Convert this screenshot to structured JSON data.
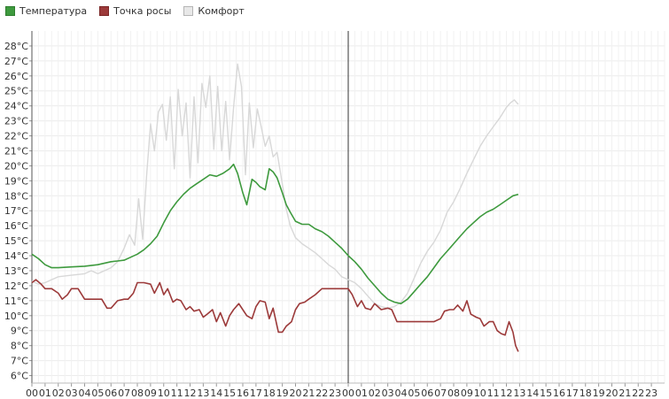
{
  "legend": [
    {
      "name": "Температура",
      "color": "#3e9a3e",
      "border": "#2e7d2e"
    },
    {
      "name": "Точка росы",
      "color": "#9c3a3a",
      "border": "#7a2525"
    },
    {
      "name": "Комфорт",
      "color": "#e8e8e8",
      "border": "#b5b5b5"
    }
  ],
  "chart_data": {
    "type": "line",
    "y_unit": "°C",
    "ylim": [
      5.5,
      29
    ],
    "y_ticks": [
      "6°C",
      "7°C",
      "8°C",
      "9°C",
      "10°C",
      "11°C",
      "12°C",
      "13°C",
      "14°C",
      "15°C",
      "16°C",
      "17°C",
      "18°C",
      "19°C",
      "20°C",
      "21°C",
      "22°C",
      "23°C",
      "24°C",
      "25°C",
      "26°C",
      "27°C",
      "28°C"
    ],
    "x_ticks": [
      "00",
      "01",
      "02",
      "03",
      "04",
      "05",
      "06",
      "07",
      "08",
      "09",
      "10",
      "11",
      "12",
      "13",
      "14",
      "15",
      "16",
      "17",
      "18",
      "19",
      "20",
      "21",
      "22",
      "23",
      "00",
      "01",
      "02",
      "03",
      "04",
      "05",
      "06",
      "07",
      "08",
      "09",
      "10",
      "11",
      "12",
      "13",
      "14",
      "15",
      "16",
      "17",
      "18",
      "19",
      "20",
      "21",
      "22",
      "23"
    ],
    "xlim_hours": [
      0,
      48
    ],
    "day_divider_hour": 24,
    "grid": true,
    "legend_position": "top-left",
    "series": [
      {
        "name": "Температура",
        "color": "#3e9a3e",
        "x": [
          0,
          0.5,
          1,
          1.5,
          2,
          3,
          4,
          5,
          6,
          6.5,
          7,
          7.5,
          8,
          8.5,
          9,
          9.5,
          10,
          10.5,
          11,
          11.5,
          12,
          12.5,
          13,
          13.5,
          14,
          14.5,
          15,
          15.3,
          15.6,
          16,
          16.3,
          16.7,
          17,
          17.3,
          17.7,
          18,
          18.3,
          18.6,
          19,
          19.3,
          19.6,
          20,
          20.5,
          21,
          21.5,
          22,
          22.5,
          23,
          23.5,
          24,
          24.5,
          25,
          25.5,
          26,
          26.5,
          27,
          27.5,
          28,
          28.5,
          29,
          29.5,
          30,
          30.5,
          31,
          31.5,
          32,
          32.5,
          33,
          33.5,
          34,
          34.5,
          35,
          35.5,
          36,
          36.5,
          36.9
        ],
        "y": [
          14.1,
          13.8,
          13.4,
          13.2,
          13.2,
          13.25,
          13.3,
          13.4,
          13.6,
          13.65,
          13.7,
          13.9,
          14.1,
          14.4,
          14.8,
          15.3,
          16.2,
          17,
          17.6,
          18.1,
          18.5,
          18.8,
          19.1,
          19.4,
          19.3,
          19.5,
          19.8,
          20.1,
          19.5,
          18.2,
          17.4,
          19.1,
          18.9,
          18.6,
          18.4,
          19.8,
          19.6,
          19.2,
          18.2,
          17.4,
          16.9,
          16.3,
          16.1,
          16.1,
          15.8,
          15.6,
          15.3,
          14.9,
          14.5,
          14.0,
          13.6,
          13.1,
          12.5,
          12.0,
          11.5,
          11.1,
          10.9,
          10.8,
          11.1,
          11.6,
          12.1,
          12.6,
          13.2,
          13.8,
          14.3,
          14.8,
          15.3,
          15.8,
          16.2,
          16.6,
          16.9,
          17.1,
          17.4,
          17.7,
          18.0,
          18.1
        ]
      },
      {
        "name": "Точка росы",
        "color": "#9c3a3a",
        "x": [
          0,
          0.3,
          0.7,
          1,
          1.5,
          2,
          2.3,
          2.7,
          3,
          3.5,
          4,
          5,
          5.3,
          5.7,
          6,
          6.5,
          7,
          7.3,
          7.7,
          8,
          8.5,
          9,
          9.3,
          9.7,
          10,
          10.3,
          10.7,
          11,
          11.3,
          11.7,
          12,
          12.3,
          12.7,
          13,
          13.3,
          13.7,
          14,
          14.3,
          14.7,
          15,
          15.3,
          15.7,
          16,
          16.3,
          16.7,
          17,
          17.3,
          17.7,
          18,
          18.3,
          18.7,
          19,
          19.3,
          19.7,
          20,
          20.3,
          20.7,
          21,
          21.5,
          22,
          22.5,
          23,
          23.5,
          24,
          24.3,
          24.7,
          25,
          25.3,
          25.7,
          26,
          26.5,
          27,
          27.3,
          27.7,
          28,
          28.5,
          29,
          29.5,
          30,
          30.5,
          31,
          31.3,
          31.7,
          32,
          32.3,
          32.7,
          33,
          33.3,
          33.7,
          34,
          34.3,
          34.7,
          35,
          35.3,
          35.6,
          35.9,
          36.2,
          36.5,
          36.7,
          36.9
        ],
        "y": [
          12.2,
          12.4,
          12.1,
          11.8,
          11.8,
          11.5,
          11.1,
          11.4,
          11.8,
          11.8,
          11.1,
          11.1,
          11.1,
          10.5,
          10.5,
          11.0,
          11.1,
          11.1,
          11.5,
          12.2,
          12.2,
          12.1,
          11.5,
          12.2,
          11.4,
          11.8,
          10.9,
          11.1,
          11.0,
          10.4,
          10.6,
          10.3,
          10.4,
          9.9,
          10.1,
          10.4,
          9.6,
          10.2,
          9.3,
          10.0,
          10.4,
          10.8,
          10.4,
          10.0,
          9.8,
          10.6,
          11.0,
          10.9,
          9.8,
          10.5,
          8.9,
          8.9,
          9.3,
          9.6,
          10.4,
          10.8,
          10.9,
          11.1,
          11.4,
          11.8,
          11.8,
          11.8,
          11.8,
          11.8,
          11.4,
          10.6,
          11.0,
          10.5,
          10.4,
          10.8,
          10.4,
          10.5,
          10.4,
          9.6,
          9.6,
          9.6,
          9.6,
          9.6,
          9.6,
          9.6,
          9.8,
          10.3,
          10.4,
          10.4,
          10.7,
          10.3,
          11.0,
          10.1,
          9.9,
          9.8,
          9.3,
          9.6,
          9.6,
          9.0,
          8.8,
          8.7,
          9.6,
          8.9,
          8.0,
          7.6
        ]
      },
      {
        "name": "Комфорт",
        "color": "#d8d8d8",
        "x": [
          0,
          0.5,
          1,
          1.5,
          2,
          3,
          4,
          4.5,
          5,
          6,
          6.5,
          7,
          7.4,
          7.8,
          8.1,
          8.4,
          8.7,
          9,
          9.3,
          9.6,
          9.9,
          10.2,
          10.5,
          10.8,
          11.1,
          11.4,
          11.7,
          12,
          12.3,
          12.6,
          12.9,
          13.2,
          13.5,
          13.8,
          14.1,
          14.4,
          14.7,
          15,
          15.3,
          15.6,
          15.9,
          16.2,
          16.5,
          16.8,
          17.1,
          17.4,
          17.7,
          18,
          18.3,
          18.6,
          19,
          19.3,
          19.6,
          20,
          20.5,
          21,
          21.5,
          22,
          22.5,
          23,
          23.5,
          24,
          24.5,
          25,
          25.5,
          26,
          26.5,
          27,
          27.5,
          28,
          28.5,
          29,
          29.5,
          30,
          30.5,
          31,
          31.5,
          32,
          32.5,
          33,
          33.5,
          34,
          34.5,
          35,
          35.5,
          36,
          36.3,
          36.6,
          36.9
        ],
        "y": [
          12.3,
          12.1,
          12.2,
          12.4,
          12.6,
          12.7,
          12.8,
          13.0,
          12.8,
          13.2,
          13.6,
          14.5,
          15.4,
          14.7,
          17.8,
          15.1,
          19.3,
          22.8,
          21.0,
          23.6,
          24.1,
          21.7,
          24.6,
          19.8,
          25.1,
          22.0,
          24.2,
          19.2,
          24.6,
          20.2,
          25.5,
          23.9,
          26.0,
          21.1,
          25.3,
          21.0,
          24.3,
          20.4,
          23.9,
          26.8,
          25.3,
          19.4,
          24.2,
          21.2,
          23.8,
          22.6,
          21.3,
          22.0,
          20.6,
          20.9,
          18.8,
          17.1,
          16.0,
          15.2,
          14.8,
          14.5,
          14.2,
          13.8,
          13.4,
          13.1,
          12.6,
          12.4,
          12.2,
          11.8,
          11.3,
          10.8,
          10.6,
          10.5,
          10.6,
          10.9,
          11.5,
          12.5,
          13.5,
          14.3,
          14.9,
          15.7,
          16.9,
          17.6,
          18.5,
          19.5,
          20.4,
          21.3,
          22.0,
          22.6,
          23.2,
          23.9,
          24.2,
          24.4,
          24.1
        ]
      }
    ]
  }
}
